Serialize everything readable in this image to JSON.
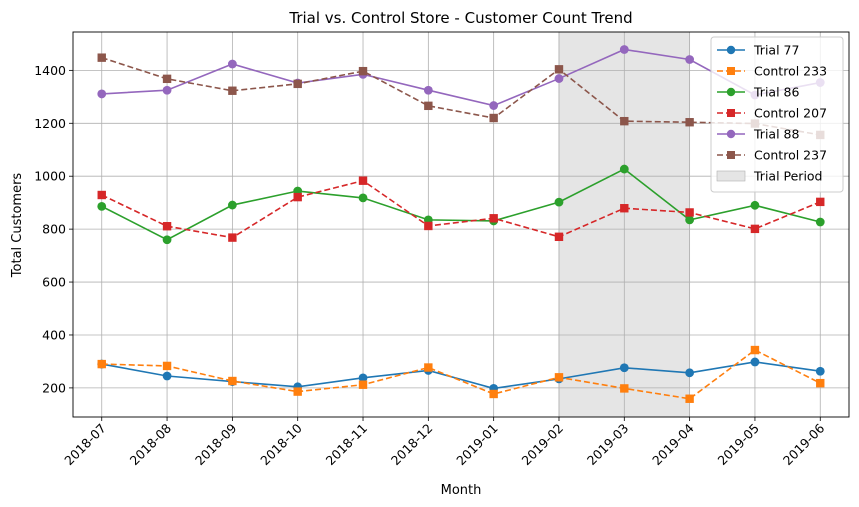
{
  "chart_data": {
    "type": "line",
    "title": "Trial vs. Control Store - Customer Count Trend",
    "xlabel": "Month",
    "ylabel": "Total Customers",
    "categories": [
      "2018-07",
      "2018-08",
      "2018-09",
      "2018-10",
      "2018-11",
      "2018-12",
      "2019-01",
      "2019-02",
      "2019-03",
      "2019-04",
      "2019-05",
      "2019-06"
    ],
    "ylim": [
      90,
      1545
    ],
    "yticks": [
      200,
      400,
      600,
      800,
      1000,
      1200,
      1400
    ],
    "grid": true,
    "legend_position": "top-right",
    "shaded_region": {
      "label": "Trial Period",
      "from": "2019-02",
      "to": "2019-04",
      "color": "#e5e5e5"
    },
    "series": [
      {
        "name": "Trial 77",
        "color": "#1f77b4",
        "marker": "circle",
        "dash": "solid",
        "values": [
          290,
          245,
          224,
          204,
          238,
          266,
          198,
          234,
          276,
          257,
          298,
          263
        ]
      },
      {
        "name": "Control 233",
        "color": "#ff7f0e",
        "marker": "square",
        "dash": "dashed",
        "values": [
          290,
          283,
          226,
          186,
          212,
          277,
          177,
          240,
          198,
          159,
          343,
          218
        ]
      },
      {
        "name": "Trial 86",
        "color": "#2ca02c",
        "marker": "circle",
        "dash": "solid",
        "values": [
          886,
          760,
          891,
          944,
          918,
          835,
          831,
          902,
          1027,
          835,
          890,
          827
        ]
      },
      {
        "name": "Control 207",
        "color": "#d62728",
        "marker": "square",
        "dash": "dashed",
        "values": [
          929,
          811,
          768,
          921,
          983,
          812,
          841,
          771,
          879,
          863,
          801,
          903
        ]
      },
      {
        "name": "Trial 88",
        "color": "#9467bd",
        "marker": "circle",
        "dash": "solid",
        "values": [
          1311,
          1325,
          1424,
          1352,
          1385,
          1325,
          1267,
          1369,
          1479,
          1441,
          1307,
          1354
        ]
      },
      {
        "name": "Control 237",
        "color": "#8c564b",
        "marker": "square",
        "dash": "dashed",
        "values": [
          1448,
          1368,
          1323,
          1349,
          1397,
          1266,
          1220,
          1404,
          1208,
          1204,
          1199,
          1156
        ]
      }
    ]
  }
}
